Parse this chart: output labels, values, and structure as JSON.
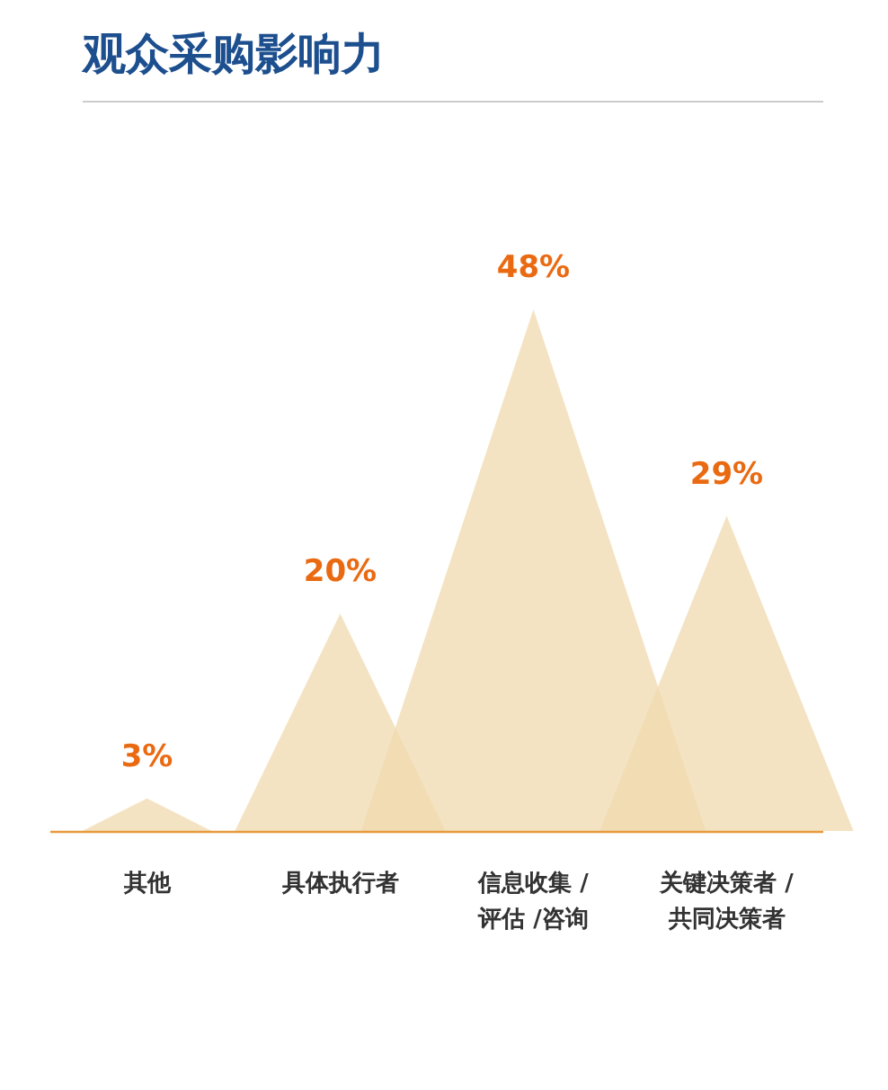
{
  "chart_data": {
    "type": "other",
    "title": "观众采购影响力",
    "categories": [
      "其他",
      "具体执行者",
      "信息收集 /\n评估 /咨询",
      "关键决策者 /\n共同决策者"
    ],
    "values": [
      3,
      20,
      48,
      29
    ],
    "color": "#f0d9ae",
    "data_labels": true,
    "value_labels": [
      "3%",
      "20%",
      "48%",
      "29%"
    ]
  }
}
